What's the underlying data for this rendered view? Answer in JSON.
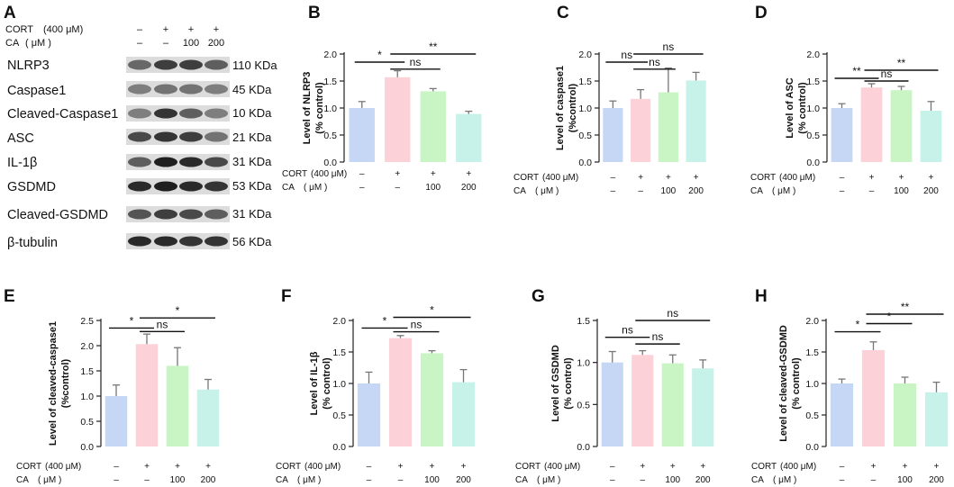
{
  "colors": {
    "blue": "#c6d7f6",
    "pink": "#fcd2d8",
    "green": "#c8f5c3",
    "teal": "#c6f2e9",
    "axis": "#222222",
    "error": "#777777"
  },
  "blot": {
    "letter": "A",
    "cort_label": "CORT",
    "cort_conc": "(400 μM)",
    "ca_label": "CA",
    "ca_unit": "( μM )",
    "cort_signs": [
      "–",
      "+",
      "+",
      "+"
    ],
    "ca_values": [
      "–",
      "–",
      "100",
      "200"
    ],
    "rows": [
      {
        "label": "NLRP3",
        "kda": "110 KDa"
      },
      {
        "label": "Caspase1",
        "kda": "45 KDa"
      },
      {
        "label": "Cleaved-Caspase1",
        "kda": "10 KDa"
      },
      {
        "label": "ASC",
        "kda": "21 KDa"
      },
      {
        "label": "IL-1β",
        "kda": "31 KDa"
      },
      {
        "label": "GSDMD",
        "kda": "53 KDa"
      },
      {
        "label": "Cleaved-GSDMD",
        "kda": "31 KDa"
      },
      {
        "label": "β-tubulin",
        "kda": "56 KDa"
      }
    ]
  },
  "condition_labels": {
    "cort": "CORT",
    "cort_conc": "(400 μM)",
    "ca": "CA",
    "ca_unit": "( μM )",
    "cort_signs": [
      "–",
      "+",
      "+",
      "+"
    ],
    "ca_values": [
      "–",
      "–",
      "100",
      "200"
    ]
  },
  "chart_data": [
    {
      "panel": "B",
      "type": "bar",
      "ylabel": [
        "Level of NLRP3",
        "(% control)"
      ],
      "ylim": [
        0,
        2.0
      ],
      "yticks": [
        0.0,
        0.5,
        1.0,
        1.5,
        2.0
      ],
      "tick_labels": [
        "0.0",
        "0.5",
        "1.0",
        "1.5",
        "2.0"
      ],
      "values": [
        1.0,
        1.57,
        1.31,
        0.89
      ],
      "errors": [
        0.12,
        0.12,
        0.05,
        0.05
      ],
      "comparisons": [
        {
          "a": 0,
          "b": 1,
          "label": "*",
          "y": 1.85
        },
        {
          "a": 1,
          "b": 3,
          "label": "**",
          "y": 2.0
        },
        {
          "a": 1,
          "b": 2,
          "label": "ns",
          "y": 1.72
        }
      ]
    },
    {
      "panel": "C",
      "type": "bar",
      "ylabel": [
        "Level of caspase1",
        "(%control)"
      ],
      "ylim": [
        0,
        2.0
      ],
      "yticks": [
        0.0,
        0.5,
        1.0,
        1.5,
        2.0
      ],
      "tick_labels": [
        "0.0",
        "0.5",
        "1.0",
        "1.5",
        "2.0"
      ],
      "values": [
        1.0,
        1.17,
        1.29,
        1.51
      ],
      "errors": [
        0.13,
        0.17,
        0.45,
        0.15
      ],
      "comparisons": [
        {
          "a": 0,
          "b": 1,
          "label": "ns",
          "y": 1.85
        },
        {
          "a": 1,
          "b": 3,
          "label": "ns",
          "y": 2.0
        },
        {
          "a": 1,
          "b": 2,
          "label": "ns",
          "y": 1.72
        }
      ]
    },
    {
      "panel": "D",
      "type": "bar",
      "ylabel": [
        "Level of ASC",
        "(% control)"
      ],
      "ylim": [
        0,
        2.0
      ],
      "yticks": [
        0.0,
        0.5,
        1.0,
        1.5,
        2.0
      ],
      "tick_labels": [
        "0.0",
        "0.5",
        "1.0",
        "1.5",
        "2.0"
      ],
      "values": [
        1.0,
        1.38,
        1.33,
        0.95
      ],
      "errors": [
        0.08,
        0.07,
        0.07,
        0.17
      ],
      "comparisons": [
        {
          "a": 0,
          "b": 1,
          "label": "**",
          "y": 1.55
        },
        {
          "a": 1,
          "b": 3,
          "label": "**",
          "y": 1.7
        },
        {
          "a": 1,
          "b": 2,
          "label": "ns",
          "y": 1.5
        }
      ]
    },
    {
      "panel": "E",
      "type": "bar",
      "ylabel": [
        "Level of cleaved-caspase1",
        "(%control)"
      ],
      "ylim": [
        0,
        2.5
      ],
      "yticks": [
        0.0,
        0.5,
        1.0,
        1.5,
        2.0,
        2.5
      ],
      "tick_labels": [
        "0.0",
        "0.5",
        "1.0",
        "1.5",
        "2.0",
        "2.5"
      ],
      "values": [
        1.0,
        2.03,
        1.6,
        1.13
      ],
      "errors": [
        0.22,
        0.2,
        0.36,
        0.2
      ],
      "comparisons": [
        {
          "a": 0,
          "b": 1,
          "label": "*",
          "y": 2.35
        },
        {
          "a": 1,
          "b": 3,
          "label": "*",
          "y": 2.55
        },
        {
          "a": 1,
          "b": 2,
          "label": "ns",
          "y": 2.28
        }
      ]
    },
    {
      "panel": "F",
      "type": "bar",
      "ylabel": [
        "Level of IL-1β",
        "(% control)"
      ],
      "ylim": [
        0,
        2.0
      ],
      "yticks": [
        0.0,
        0.5,
        1.0,
        1.5,
        2.0
      ],
      "tick_labels": [
        "0.0",
        "0.5",
        "1.0",
        "1.5",
        "2.0"
      ],
      "values": [
        1.0,
        1.72,
        1.48,
        1.02
      ],
      "errors": [
        0.18,
        0.04,
        0.04,
        0.2
      ],
      "comparisons": [
        {
          "a": 0,
          "b": 1,
          "label": "*",
          "y": 1.88
        },
        {
          "a": 1,
          "b": 3,
          "label": "*",
          "y": 2.05
        },
        {
          "a": 1,
          "b": 2,
          "label": "ns",
          "y": 1.82
        }
      ]
    },
    {
      "panel": "G",
      "type": "bar",
      "ylabel": [
        "Level of GSDMD",
        "(% control)"
      ],
      "ylim": [
        0,
        1.5
      ],
      "yticks": [
        0.0,
        0.5,
        1.0,
        1.5
      ],
      "tick_labels": [
        "0.0",
        "0.5",
        "1.0",
        "1.5"
      ],
      "values": [
        1.0,
        1.09,
        0.99,
        0.93
      ],
      "errors": [
        0.13,
        0.05,
        0.1,
        0.1
      ],
      "comparisons": [
        {
          "a": 0,
          "b": 1,
          "label": "ns",
          "y": 1.3
        },
        {
          "a": 1,
          "b": 3,
          "label": "ns",
          "y": 1.5
        },
        {
          "a": 1,
          "b": 2,
          "label": "ns",
          "y": 1.22
        }
      ]
    },
    {
      "panel": "H",
      "type": "bar",
      "ylabel": [
        "Level of cleaved-GSDMD",
        "(% control)"
      ],
      "ylim": [
        0,
        2.0
      ],
      "yticks": [
        0.0,
        0.5,
        1.0,
        1.5,
        2.0
      ],
      "tick_labels": [
        "0.0",
        "0.5",
        "1.0",
        "1.5",
        "2.0"
      ],
      "values": [
        1.0,
        1.53,
        1.0,
        0.86
      ],
      "errors": [
        0.07,
        0.13,
        0.1,
        0.16
      ],
      "comparisons": [
        {
          "a": 0,
          "b": 1,
          "label": "*",
          "y": 1.82
        },
        {
          "a": 1,
          "b": 3,
          "label": "**",
          "y": 2.1
        },
        {
          "a": 1,
          "b": 2,
          "label": "*",
          "y": 1.95
        }
      ]
    }
  ]
}
